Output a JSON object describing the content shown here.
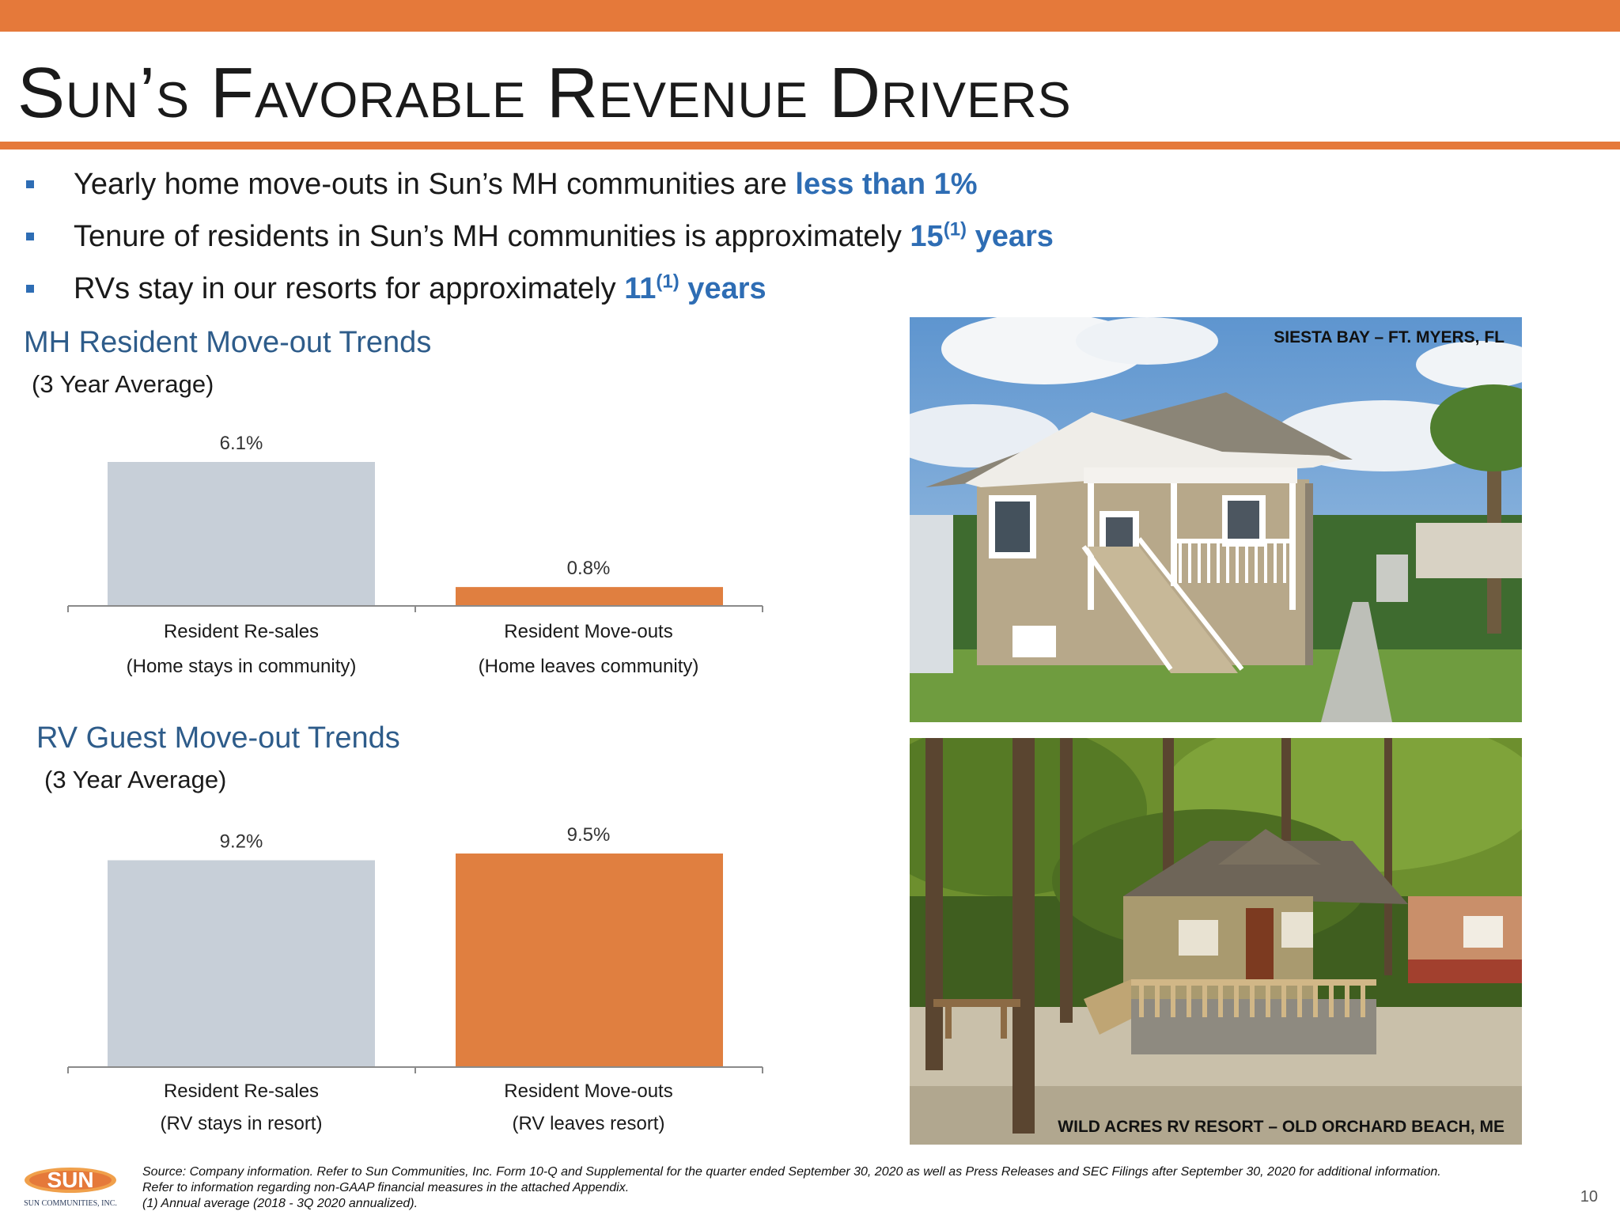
{
  "slide": {
    "title": "Sun’s Favorable Revenue Drivers",
    "page_number": "10",
    "accent_color": "#E5793A",
    "highlight_color": "#2E6DB4"
  },
  "bullets": [
    {
      "text": "Yearly home move-outs in Sun’s MH communities are ",
      "highlight": "less than 1%",
      "sup": "",
      "after": ""
    },
    {
      "text": "Tenure of residents in Sun’s MH communities is approximately ",
      "highlight": "15",
      "sup": "(1)",
      "after": " years"
    },
    {
      "text": "RVs stay in our resorts for approximately ",
      "highlight": "11",
      "sup": "(1)",
      "after": " years"
    }
  ],
  "chart_data": [
    {
      "type": "bar",
      "title": "MH Resident Move-out Trends",
      "subtitle": "(3 Year Average)",
      "categories": [
        "Resident Re-sales",
        "Resident Move-outs"
      ],
      "category_sublabels": [
        "(Home stays in community)",
        "(Home leaves community)"
      ],
      "values": [
        6.1,
        0.8
      ],
      "value_labels": [
        "6.1%",
        "0.8%"
      ],
      "colors": [
        "#C7CFD8",
        "#E07F40"
      ],
      "ylim": [
        0,
        6.1
      ]
    },
    {
      "type": "bar",
      "title": "RV Guest Move-out Trends",
      "subtitle": "(3 Year Average)",
      "categories": [
        "Resident Re-sales",
        "Resident Move-outs"
      ],
      "category_sublabels": [
        "(RV stays in resort)",
        "(RV leaves resort)"
      ],
      "values": [
        9.2,
        9.5
      ],
      "value_labels": [
        "9.2%",
        "9.5%"
      ],
      "colors": [
        "#C7CFD8",
        "#E07F40"
      ],
      "ylim": [
        0,
        9.5
      ]
    }
  ],
  "photos": [
    {
      "caption": "SIESTA BAY – FT. MYERS, FL"
    },
    {
      "caption": "WILD ACRES RV RESORT – OLD ORCHARD BEACH, ME"
    }
  ],
  "logo": {
    "word": "SUN",
    "tagline": "SUN COMMUNITIES, INC."
  },
  "footnotes": [
    "Source: Company information. Refer to Sun Communities, Inc. Form 10-Q and Supplemental for the quarter ended September 30, 2020 as well as Press Releases and SEC Filings after September 30, 2020 for additional information.",
    "Refer to information regarding non-GAAP financial measures in the attached Appendix.",
    "(1)      Annual average (2018 -  3Q 2020 annualized)."
  ]
}
